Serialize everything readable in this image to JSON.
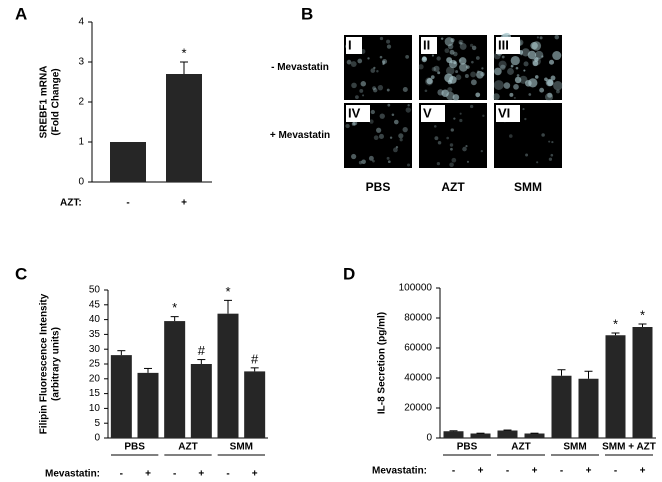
{
  "chart_data": [
    {
      "type": "bar",
      "panel": "A",
      "y_label": [
        "SREBF1 mRNA",
        "(Fold Change)"
      ],
      "x_label": "AZT:",
      "categories": [
        "-",
        "+"
      ],
      "values": [
        1,
        2.7
      ],
      "errors": [
        null,
        0.3
      ],
      "annotations": [
        null,
        "*"
      ],
      "color": "#262626",
      "ylim": [
        0,
        4
      ],
      "yticks": [
        0,
        1,
        2,
        3,
        4
      ]
    },
    {
      "type": "bar",
      "panel": "C",
      "y_label": [
        "Filipin Fluorescence Intensity",
        "(arbitrary units)"
      ],
      "x_label": "Mevastatin:",
      "groups": [
        "PBS",
        "AZT",
        "SMM"
      ],
      "categories": [
        "-",
        "+",
        "-",
        "+",
        "-",
        "+"
      ],
      "values": [
        28,
        22,
        39.5,
        25,
        42,
        22.5
      ],
      "errors": [
        1.5,
        1.5,
        1.5,
        1.5,
        4.5,
        1.2
      ],
      "annotations": [
        null,
        null,
        "*",
        "#",
        "*",
        "#"
      ],
      "color": "#262626",
      "ylim": [
        0,
        50
      ],
      "yticks": [
        0,
        5,
        10,
        15,
        20,
        25,
        30,
        35,
        40,
        45,
        50
      ]
    },
    {
      "type": "bar",
      "panel": "D",
      "y_label": [
        "IL-8 Secretion (pg/ml)"
      ],
      "x_label": "Mevastatin:",
      "groups": [
        "PBS",
        "AZT",
        "SMM",
        "SMM + AZT"
      ],
      "categories": [
        "-",
        "+",
        "-",
        "+",
        "-",
        "+",
        "-",
        "+"
      ],
      "values": [
        4500,
        3000,
        5000,
        3000,
        41500,
        39500,
        68500,
        74000
      ],
      "errors": [
        300,
        200,
        300,
        200,
        4000,
        5000,
        1500,
        2000
      ],
      "annotations": [
        null,
        null,
        null,
        null,
        null,
        null,
        "*",
        "*"
      ],
      "color": "#262626",
      "ylim": [
        0,
        100000
      ],
      "yticks": [
        0,
        20000,
        40000,
        60000,
        80000,
        100000
      ]
    }
  ],
  "panel_b": {
    "panel": "B",
    "rows": [
      "- Mevastatin",
      "+ Mevastatin"
    ],
    "columns": [
      "PBS",
      "AZT",
      "SMM"
    ],
    "images": [
      [
        "I",
        "II",
        "III"
      ],
      [
        "IV",
        "V",
        "VI"
      ]
    ]
  }
}
